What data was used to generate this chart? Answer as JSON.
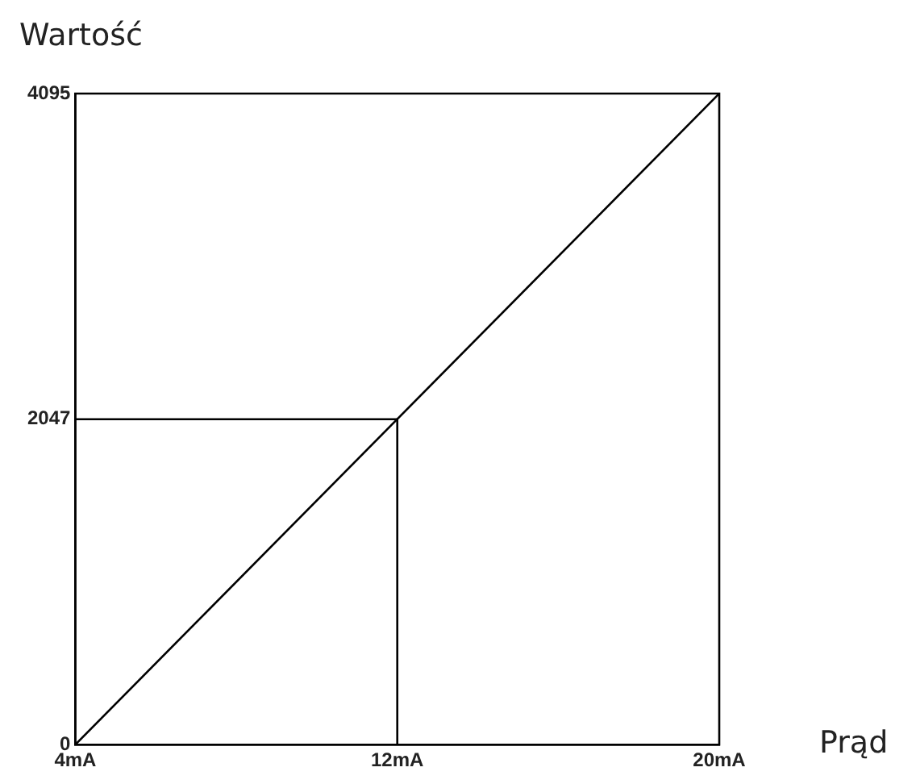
{
  "chart_data": {
    "type": "line",
    "xlabel": "Prąd",
    "ylabel": "Wartość",
    "xlim": [
      4,
      20
    ],
    "ylim": [
      0,
      4095
    ],
    "xticks": [
      {
        "value": 4,
        "label": "4mA"
      },
      {
        "value": 12,
        "label": "12mA"
      },
      {
        "value": 20,
        "label": "20mA"
      }
    ],
    "yticks": [
      0,
      2047,
      4095
    ],
    "series": [
      {
        "x": [
          4,
          20
        ],
        "values": [
          0,
          4095
        ],
        "color": "#000000"
      },
      {
        "x": [
          4,
          12,
          12
        ],
        "values": [
          2047,
          2047,
          0
        ],
        "color": "#000000"
      }
    ],
    "grid": false,
    "legend": false,
    "marker": "none",
    "line_style": "solid"
  }
}
